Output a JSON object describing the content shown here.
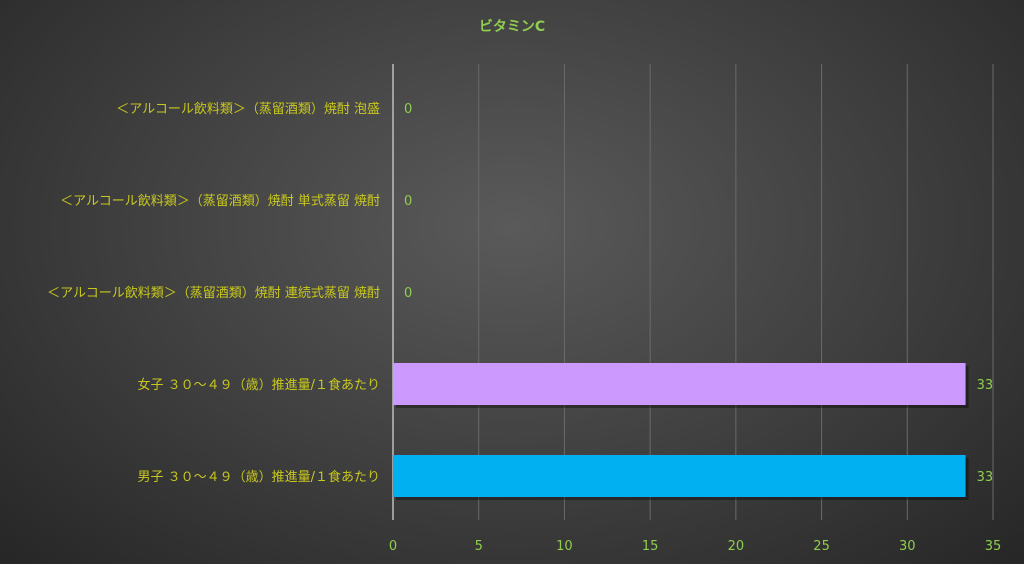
{
  "chart_data": {
    "type": "bar",
    "orientation": "horizontal",
    "title": "ビタミンC",
    "categories": [
      "＜アルコール飲料類＞（蒸留酒類）焼酎 泡盛",
      "＜アルコール飲料類＞（蒸留酒類）焼酎 単式蒸留 焼酎",
      "＜アルコール飲料類＞（蒸留酒類）焼酎 連続式蒸留 焼酎",
      "女子 ３０～４９（歳）推進量/１食あたり",
      "男子 ３０～４９（歳）推進量/１食あたり"
    ],
    "values": [
      0,
      0,
      0,
      33.4,
      33.4
    ],
    "data_labels": [
      "0",
      "0",
      "0",
      "33",
      "33"
    ],
    "colors": [
      "#cc99ff",
      "#cc99ff",
      "#cc99ff",
      "#cc99ff",
      "#00b0f0"
    ],
    "xlim": [
      0,
      35
    ],
    "xticks": [
      "0",
      "5",
      "10",
      "15",
      "20",
      "25",
      "30",
      "35"
    ],
    "grid": true,
    "label_color": "#c8c81e",
    "tick_color": "#8fce4e"
  }
}
